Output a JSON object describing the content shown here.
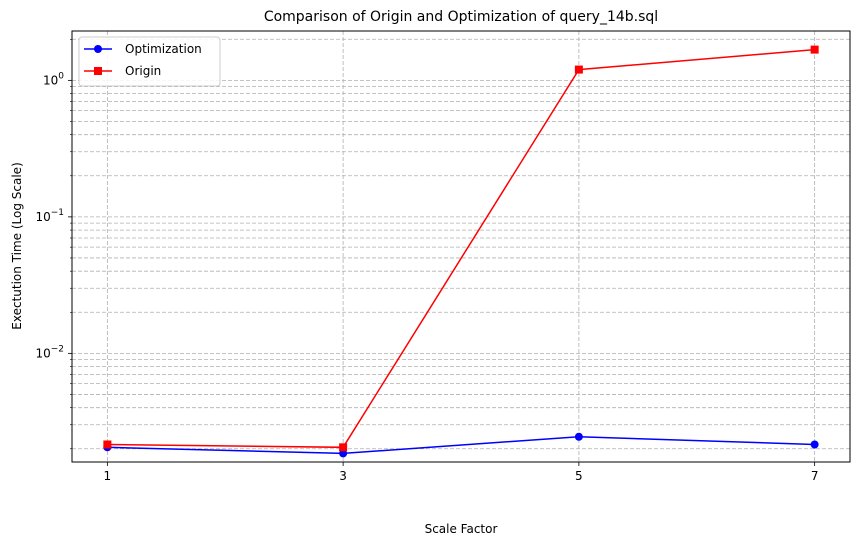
{
  "chart_data": {
    "type": "line",
    "title": "Comparison of Origin and Optimization of query_14b.sql",
    "xlabel": "Scale Factor",
    "ylabel": "Exectution Time (Log Scale)",
    "yscale": "log",
    "ylim": [
      0.0016,
      2.3
    ],
    "grid": true,
    "legend_position": "top-left",
    "x": [
      1,
      3,
      5,
      7
    ],
    "x_tick_labels": [
      "1",
      "3",
      "5",
      "7"
    ],
    "y_tick_labels": [
      {
        "value": 0.01,
        "base": "10",
        "exp": "−2"
      },
      {
        "value": 0.1,
        "base": "10",
        "exp": "−1"
      },
      {
        "value": 1,
        "base": "10",
        "exp": "0"
      }
    ],
    "series": [
      {
        "name": "Optimization",
        "color": "#0000ff",
        "marker": "circle",
        "values": [
          0.00205,
          0.00185,
          0.00245,
          0.00215
        ]
      },
      {
        "name": "Origin",
        "color": "#ff0000",
        "marker": "square",
        "values": [
          0.00215,
          0.00205,
          1.2,
          1.68
        ]
      }
    ]
  }
}
